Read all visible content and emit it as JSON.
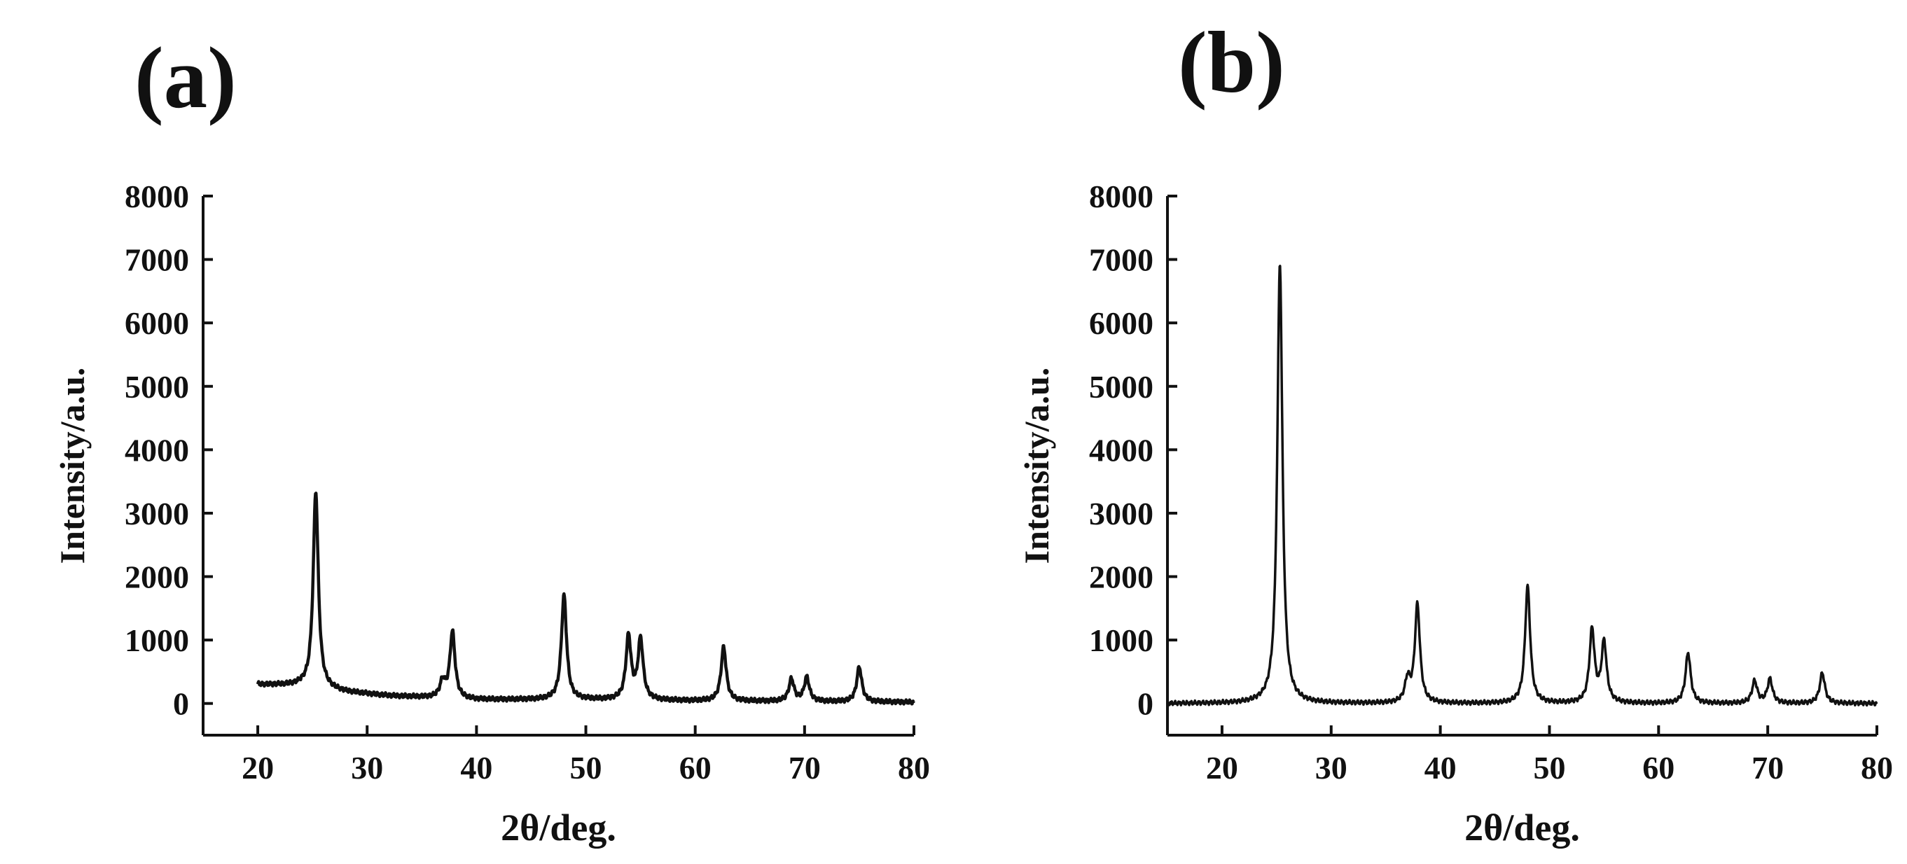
{
  "panels": [
    {
      "label": "(a)"
    },
    {
      "label": "(b)"
    }
  ],
  "chart_data": [
    {
      "type": "line",
      "panel": "(a)",
      "title": "",
      "xlabel": "2θ/deg.",
      "ylabel": "Intensity/a.u.",
      "xlim": [
        15,
        80
      ],
      "ylim": [
        -500,
        8000
      ],
      "xticks": [
        20,
        30,
        40,
        50,
        60,
        70,
        80
      ],
      "yticks": [
        0,
        1000,
        2000,
        3000,
        4000,
        5000,
        6000,
        7000,
        8000
      ],
      "grid": false,
      "series": [
        {
          "x_range": [
            20,
            80
          ],
          "baseline": [
            [
              20,
              300
            ],
            [
              24,
              280
            ],
            [
              28,
              180
            ],
            [
              32,
              120
            ],
            [
              36,
              90
            ],
            [
              40,
              60
            ],
            [
              50,
              60
            ],
            [
              60,
              40
            ],
            [
              70,
              30
            ],
            [
              80,
              20
            ]
          ],
          "peaks": [
            {
              "x": 25.3,
              "y": 3100
            },
            {
              "x": 36.9,
              "y": 250
            },
            {
              "x": 37.8,
              "y": 1050
            },
            {
              "x": 48.0,
              "y": 1650
            },
            {
              "x": 53.9,
              "y": 1000
            },
            {
              "x": 55.0,
              "y": 950
            },
            {
              "x": 62.6,
              "y": 850
            },
            {
              "x": 68.8,
              "y": 350
            },
            {
              "x": 70.2,
              "y": 380
            },
            {
              "x": 75.0,
              "y": 550
            }
          ]
        }
      ]
    },
    {
      "type": "line",
      "panel": "(b)",
      "title": "",
      "xlabel": "2θ/deg.",
      "ylabel": "Intensity/a.u.",
      "xlim": [
        15,
        80
      ],
      "ylim": [
        -500,
        8000
      ],
      "xticks": [
        20,
        30,
        40,
        50,
        60,
        70,
        80
      ],
      "yticks": [
        0,
        1000,
        2000,
        3000,
        4000,
        5000,
        6000,
        7000,
        8000
      ],
      "grid": false,
      "series": [
        {
          "x_range": [
            15,
            80
          ],
          "baseline": [
            [
              15,
              0
            ],
            [
              80,
              0
            ]
          ],
          "peaks": [
            {
              "x": 25.3,
              "y": 6950
            },
            {
              "x": 37.0,
              "y": 350
            },
            {
              "x": 37.9,
              "y": 1550
            },
            {
              "x": 48.0,
              "y": 1850
            },
            {
              "x": 53.9,
              "y": 1150
            },
            {
              "x": 55.0,
              "y": 950
            },
            {
              "x": 62.7,
              "y": 800
            },
            {
              "x": 68.8,
              "y": 350
            },
            {
              "x": 70.2,
              "y": 380
            },
            {
              "x": 75.0,
              "y": 480
            }
          ]
        }
      ]
    }
  ]
}
